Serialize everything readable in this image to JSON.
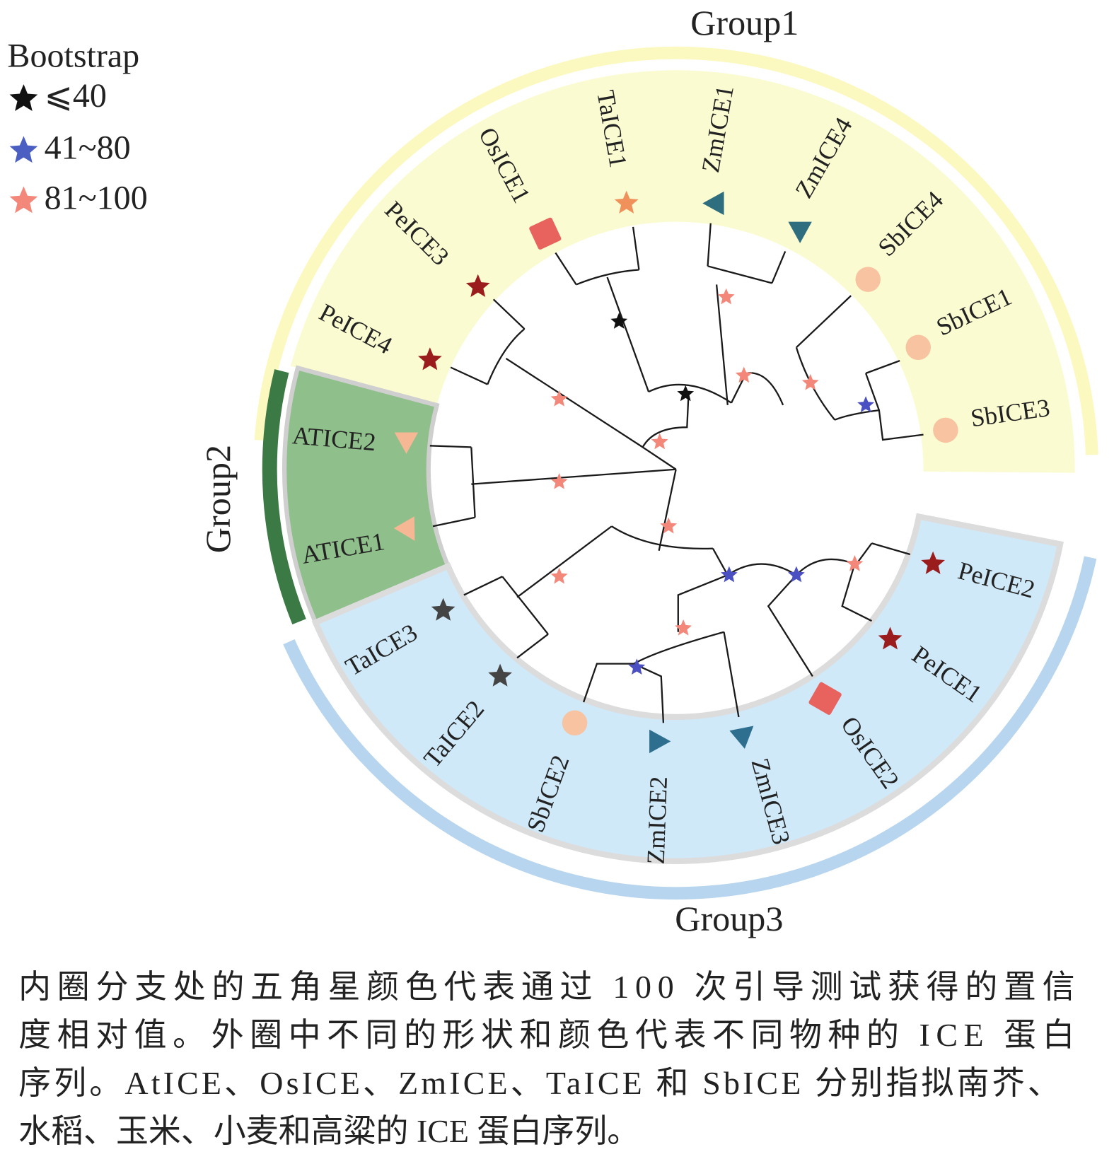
{
  "legend": {
    "title": "Bootstrap",
    "items": [
      "⩽40",
      "41~80",
      "81~100"
    ]
  },
  "groups": [
    "Group1",
    "Group2",
    "Group3"
  ],
  "leaves": [
    "PeICE4",
    "PeICE3",
    "OsICE1",
    "TaICE1",
    "ZmICE1",
    "ZmICE4",
    "SbICE4",
    "SbICE1",
    "SbICE3",
    "ATICE2",
    "ATICE1",
    "TaICE3",
    "TaICE2",
    "SbICE2",
    "ZmICE2",
    "ZmICE3",
    "OsICE2",
    "PeICE1",
    "PeICE2"
  ],
  "caption": [
    "内圈分支处的五角星颜色代表通过 100 次引导测试获得的置信",
    "度相对值。外圈中不同的形状和颜色代表不同物种的 ICE 蛋白",
    "序列。AtICE、OsICE、ZmICE、TaICE 和  SbICE 分别指拟南芥、",
    "水稻、玉米、小麦和高粱的 ICE 蛋白序列。"
  ]
}
